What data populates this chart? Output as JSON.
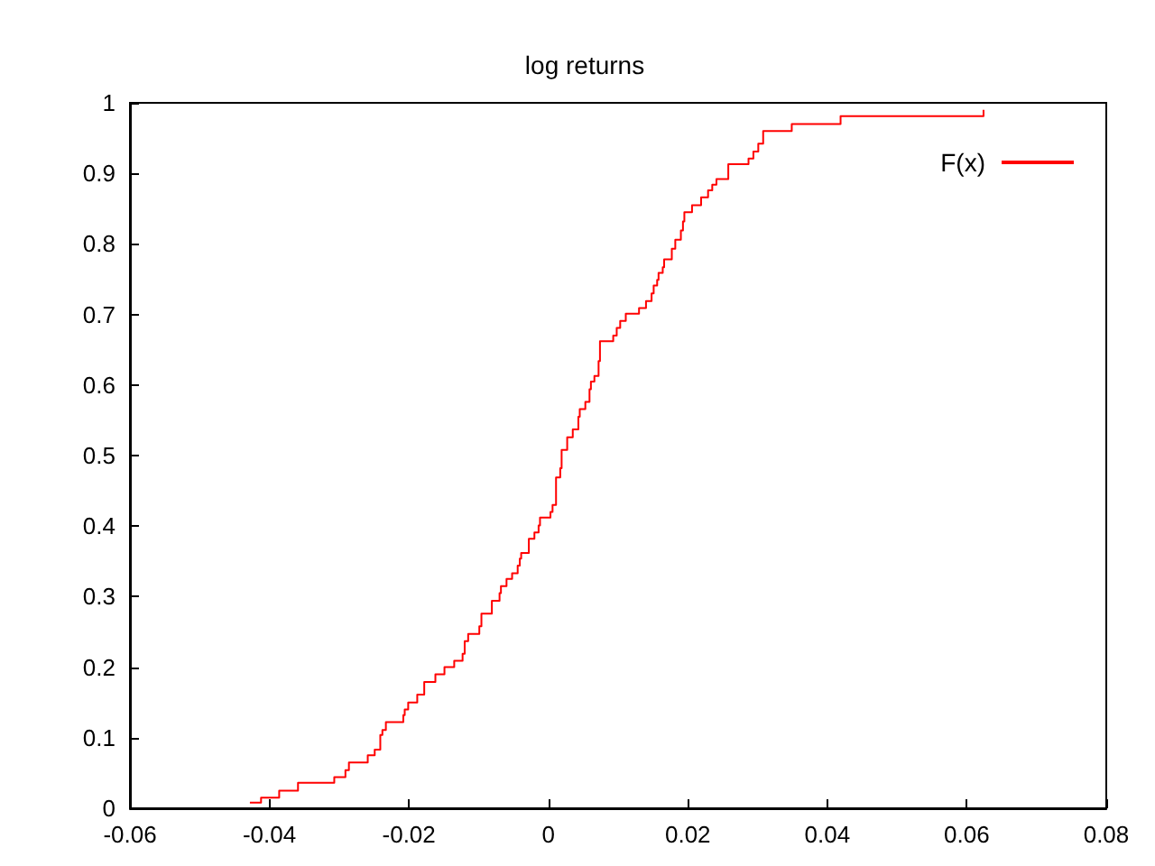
{
  "chart_data": {
    "type": "step",
    "title": "log returns",
    "x": [
      -0.0428,
      -0.0412,
      -0.0386,
      -0.0359,
      -0.0307,
      -0.0291,
      -0.0286,
      -0.0259,
      -0.0249,
      -0.0241,
      -0.0238,
      -0.0233,
      -0.0208,
      -0.0206,
      -0.0201,
      -0.0188,
      -0.0178,
      -0.0162,
      -0.0149,
      -0.0135,
      -0.0123,
      -0.012,
      -0.0115,
      -0.0099,
      -0.0096,
      -0.0081,
      -0.007,
      -0.0068,
      -0.006,
      -0.0052,
      -0.0044,
      -0.0041,
      -0.0039,
      -0.0028,
      -0.002,
      -0.0014,
      -0.0012,
      0.0003,
      0.0006,
      0.0011,
      0.0017,
      0.0019,
      0.0027,
      0.0035,
      0.0043,
      0.0045,
      0.0053,
      0.0059,
      0.0061,
      0.0066,
      0.0072,
      0.0074,
      0.0093,
      0.0098,
      0.0103,
      0.0111,
      0.013,
      0.014,
      0.0148,
      0.0151,
      0.0156,
      0.0158,
      0.0164,
      0.0166,
      0.0177,
      0.0182,
      0.019,
      0.0193,
      0.0195,
      0.0206,
      0.0219,
      0.0229,
      0.0235,
      0.0241,
      0.0258,
      0.0287,
      0.0294,
      0.0301,
      0.0308,
      0.0349,
      0.0419,
      0.0624
    ],
    "series": [
      {
        "name": "F(x)",
        "color": "#ff0000",
        "values": [
          0.008,
          0.015,
          0.025,
          0.036,
          0.044,
          0.054,
          0.065,
          0.075,
          0.083,
          0.104,
          0.111,
          0.122,
          0.132,
          0.14,
          0.15,
          0.161,
          0.179,
          0.19,
          0.2,
          0.209,
          0.219,
          0.237,
          0.247,
          0.258,
          0.276,
          0.294,
          0.305,
          0.315,
          0.325,
          0.333,
          0.344,
          0.354,
          0.362,
          0.382,
          0.391,
          0.401,
          0.412,
          0.42,
          0.43,
          0.469,
          0.482,
          0.508,
          0.526,
          0.537,
          0.555,
          0.566,
          0.576,
          0.594,
          0.605,
          0.613,
          0.634,
          0.662,
          0.67,
          0.681,
          0.691,
          0.701,
          0.709,
          0.719,
          0.73,
          0.741,
          0.749,
          0.759,
          0.767,
          0.778,
          0.793,
          0.806,
          0.819,
          0.832,
          0.845,
          0.855,
          0.866,
          0.876,
          0.884,
          0.892,
          0.913,
          0.921,
          0.931,
          0.942,
          0.96,
          0.97,
          0.981,
          0.99
        ]
      }
    ],
    "xlim": [
      -0.06,
      0.08
    ],
    "xticks": [
      -0.06,
      -0.04,
      -0.02,
      0,
      0.02,
      0.04,
      0.06,
      0.08
    ],
    "ylim": [
      0,
      1
    ],
    "yticks": [
      0,
      0.1,
      0.2,
      0.3,
      0.4,
      0.5,
      0.6,
      0.7,
      0.8,
      0.9,
      1
    ],
    "grid": false,
    "legend": "top right",
    "marker": "none",
    "line_style": "solid"
  }
}
